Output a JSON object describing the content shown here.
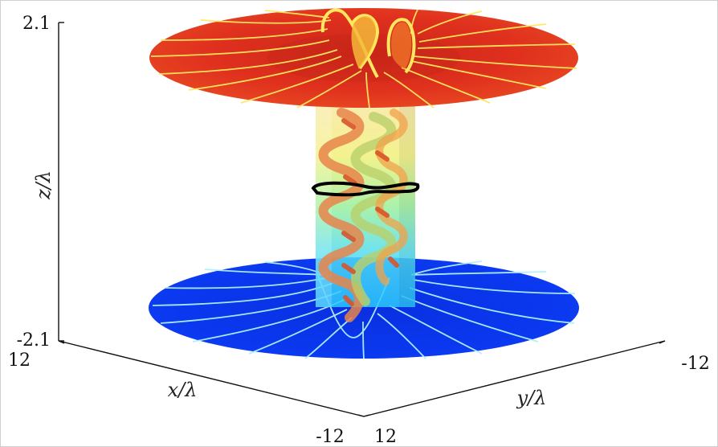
{
  "chart_data": {
    "type": "surface-3d",
    "axes": {
      "x": {
        "label": "x/λ",
        "ticks": [
          "12",
          "-12"
        ],
        "range": [
          -12,
          12
        ]
      },
      "y": {
        "label": "y/λ",
        "ticks": [
          "12",
          "-12"
        ],
        "range": [
          -12,
          12
        ]
      },
      "z": {
        "label": "z/λ",
        "ticks": [
          "2.1",
          "-2.1"
        ],
        "range": [
          -2.1,
          2.1
        ]
      }
    },
    "surfaces": [
      {
        "name": "top-disk",
        "z": 2.1,
        "color": "#e0301e",
        "streamline_color": "#ffe860"
      },
      {
        "name": "bottom-disk",
        "z": -2.1,
        "color": "#0b37f0",
        "streamline_color": "#9fe6ff"
      },
      {
        "name": "central-column",
        "z_range": [
          -2.1,
          2.1
        ],
        "colormap": [
          "#2ad0ff",
          "#7cf09a",
          "#f4f27a",
          "#f7c15e"
        ]
      }
    ],
    "midplane_ring": {
      "z": 0,
      "color": "#000000"
    },
    "grid": false,
    "legend": "none"
  }
}
